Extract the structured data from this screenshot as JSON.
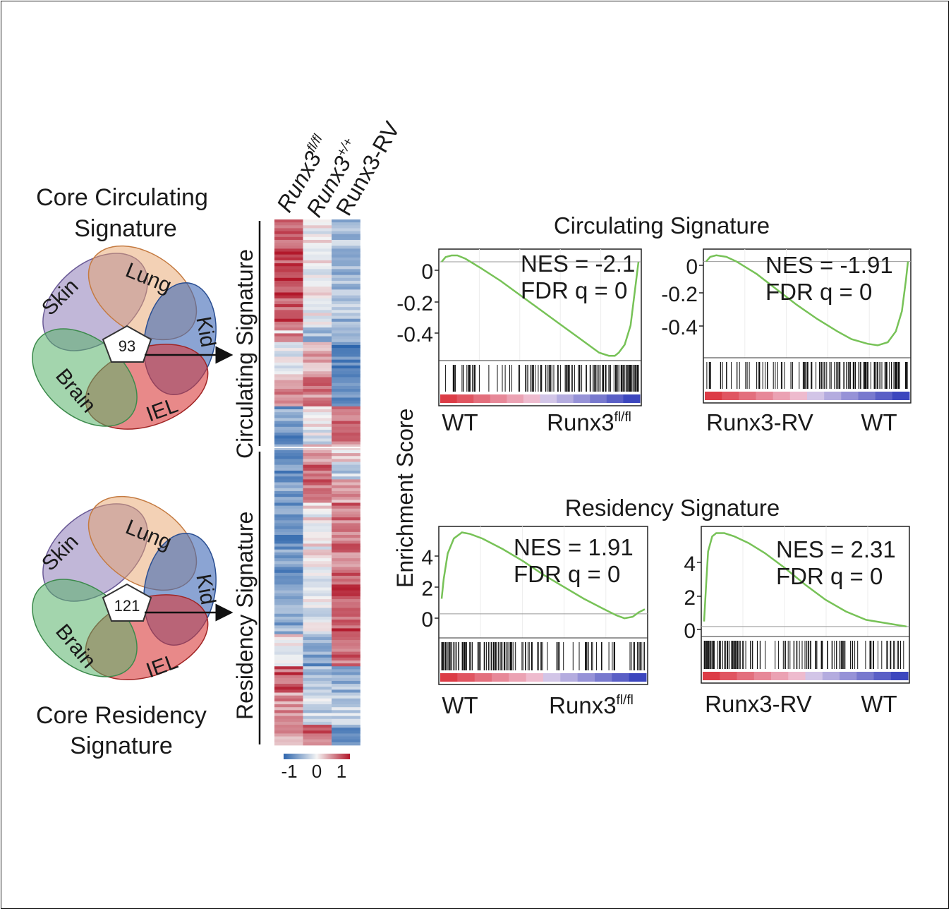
{
  "venn_top": {
    "title_line1": "Core Circulating",
    "title_line2": "Signature",
    "count": "93",
    "sets": [
      "Skin",
      "Lung",
      "Kid",
      "IEL",
      "Brain"
    ]
  },
  "venn_bottom": {
    "title_line1": "Core Residency",
    "title_line2": "Signature",
    "count": "121",
    "sets": [
      "Skin",
      "Lung",
      "Kid",
      "IEL",
      "Brain"
    ]
  },
  "heatmap": {
    "columns": [
      {
        "base": "Runx3",
        "sup": "fl/fl"
      },
      {
        "base": "Runx3",
        "sup": "+/+"
      },
      {
        "base": "Runx3-RV",
        "sup": ""
      }
    ],
    "row_groups": [
      "Circulating Signature",
      "Residency Signature"
    ],
    "colorbar": {
      "ticks": [
        "-1",
        "0",
        "1"
      ],
      "colors": {
        "low": "#2e66ad",
        "mid": "#f4f4f4",
        "high": "#b2182b"
      }
    }
  },
  "gsea": {
    "ylabel": "Enrichment Score",
    "circ_title": "Circulating Signature",
    "res_title": "Residency Signature",
    "line_color": "#77c257",
    "panels": [
      {
        "nes": "NES = -2.1",
        "fdr": "FDR q = 0",
        "yticks": [
          "0",
          "-0.2",
          "-0.4"
        ],
        "left_label": "WT",
        "right_base": "Runx3",
        "right_sup": "fl/fl",
        "chart_data": {
          "type": "line",
          "x_range": [
            0,
            1
          ],
          "ylim": [
            -0.62,
            0.08
          ],
          "x": [
            0,
            0.02,
            0.05,
            0.08,
            0.12,
            0.2,
            0.3,
            0.4,
            0.5,
            0.6,
            0.7,
            0.8,
            0.85,
            0.88,
            0.9,
            0.93,
            0.96,
            0.98,
            1.0
          ],
          "y": [
            0.0,
            0.03,
            0.04,
            0.04,
            0.02,
            -0.04,
            -0.12,
            -0.21,
            -0.3,
            -0.39,
            -0.48,
            -0.57,
            -0.59,
            -0.59,
            -0.57,
            -0.52,
            -0.4,
            -0.2,
            0.0
          ]
        }
      },
      {
        "nes": "NES = -1.91",
        "fdr": "FDR q = 0",
        "yticks": [
          "0",
          "-0.2",
          "-0.4"
        ],
        "left_label": "Runx3-RV",
        "right_base": "WT",
        "right_sup": "",
        "chart_data": {
          "type": "line",
          "x_range": [
            0,
            1
          ],
          "ylim": [
            -0.62,
            0.08
          ],
          "x": [
            0,
            0.02,
            0.05,
            0.1,
            0.15,
            0.25,
            0.35,
            0.45,
            0.55,
            0.65,
            0.72,
            0.8,
            0.85,
            0.9,
            0.94,
            0.97,
            0.99,
            1.0
          ],
          "y": [
            0.0,
            0.03,
            0.04,
            0.03,
            0.0,
            -0.08,
            -0.18,
            -0.28,
            -0.37,
            -0.45,
            -0.5,
            -0.53,
            -0.54,
            -0.52,
            -0.45,
            -0.32,
            -0.12,
            0.0
          ]
        }
      },
      {
        "nes": "NES = 1.91",
        "fdr": "FDR q = 0",
        "yticks": [
          "4",
          "2",
          "0"
        ],
        "left_label": "WT",
        "right_base": "Runx3",
        "right_sup": "fl/fl",
        "chart_data": {
          "type": "line",
          "x_range": [
            0,
            1
          ],
          "ylim": [
            -1.6,
            5.8
          ],
          "x": [
            0,
            0.01,
            0.03,
            0.06,
            0.1,
            0.14,
            0.2,
            0.3,
            0.4,
            0.5,
            0.6,
            0.7,
            0.8,
            0.86,
            0.9,
            0.94,
            0.97,
            1.0
          ],
          "y": [
            1.0,
            2.3,
            4.0,
            5.0,
            5.4,
            5.3,
            5.0,
            4.3,
            3.5,
            2.6,
            1.8,
            1.0,
            0.3,
            -0.1,
            -0.3,
            -0.2,
            0.1,
            0.3
          ]
        }
      },
      {
        "nes": "NES = 2.31",
        "fdr": "FDR q = 0",
        "yticks": [
          "4",
          "2",
          "0"
        ],
        "left_label": "Runx3-RV",
        "right_base": "WT",
        "right_sup": "",
        "chart_data": {
          "type": "line",
          "x_range": [
            0,
            1
          ],
          "ylim": [
            -0.6,
            6.0
          ],
          "x": [
            0,
            0.01,
            0.02,
            0.04,
            0.06,
            0.1,
            0.15,
            0.22,
            0.3,
            0.4,
            0.5,
            0.6,
            0.7,
            0.8,
            0.9,
            0.95,
            1.0
          ],
          "y": [
            0.3,
            2.5,
            4.5,
            5.4,
            5.6,
            5.6,
            5.4,
            5.0,
            4.4,
            3.5,
            2.5,
            1.6,
            0.9,
            0.4,
            0.2,
            0.1,
            0.0
          ]
        }
      }
    ]
  }
}
